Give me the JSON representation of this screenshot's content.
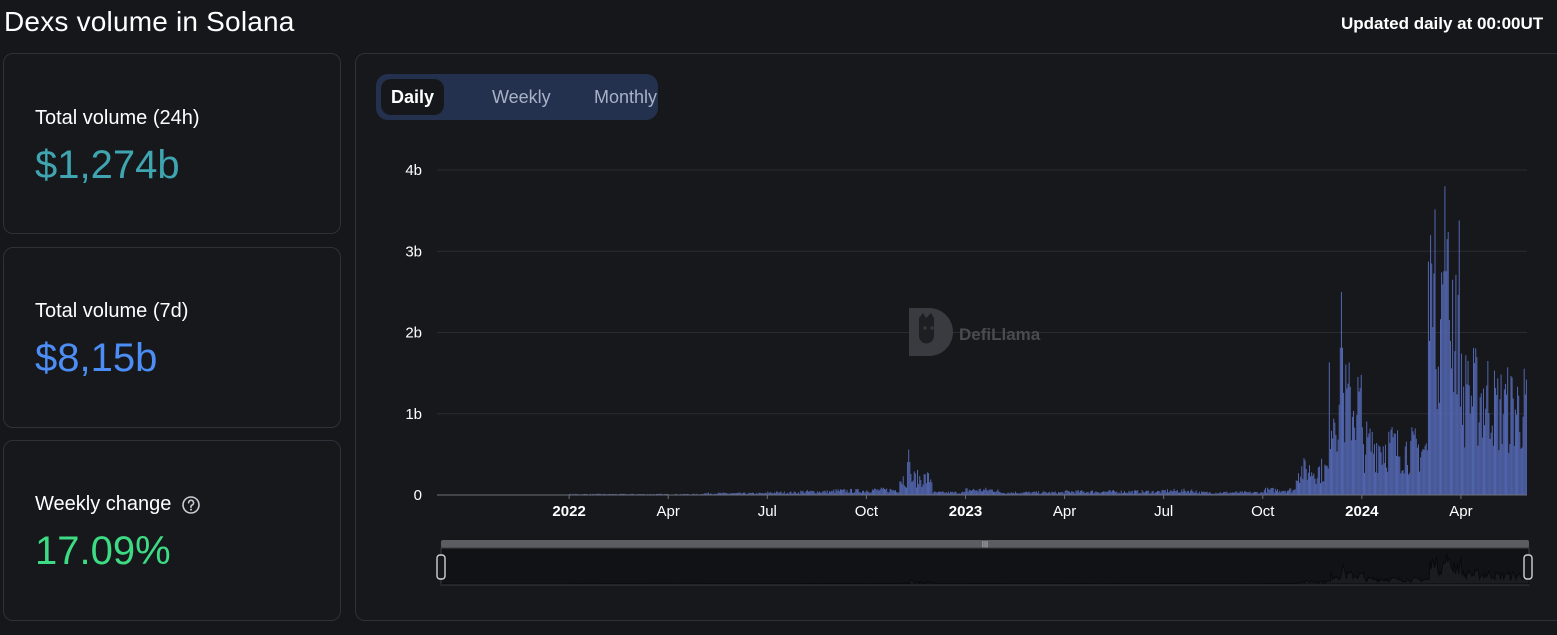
{
  "header": {
    "title": "Dexs volume in Solana",
    "updated_note": "Updated daily at 00:00UT"
  },
  "stats": [
    {
      "label": "Total volume (24h)",
      "value": "$1,274b",
      "color": "#3fa5b0"
    },
    {
      "label": "Total volume (7d)",
      "value": "$8,15b",
      "color": "#4c8ef5"
    },
    {
      "label": "Weekly change",
      "value": "17.09%",
      "color": "#3ddc84"
    }
  ],
  "tabs": [
    {
      "label": "Daily",
      "active": true
    },
    {
      "label": "Weekly",
      "active": false
    },
    {
      "label": "Monthly",
      "active": false
    }
  ],
  "watermark": "DefiLlama",
  "colors": {
    "bar": "#5468b3",
    "background": "#16171b",
    "grid": "#2a2c33",
    "axis_text": "#ffffff"
  },
  "chart_data": {
    "type": "bar",
    "title": "",
    "xlabel": "",
    "ylabel": "",
    "ylim": [
      0,
      4
    ],
    "y_unit": "b",
    "y_ticks": [
      {
        "value": 0,
        "label": "0"
      },
      {
        "value": 1,
        "label": "1b"
      },
      {
        "value": 2,
        "label": "2b"
      },
      {
        "value": 3,
        "label": "3b"
      },
      {
        "value": 4,
        "label": "4b"
      }
    ],
    "x_range": [
      "2021-09",
      "2024-05"
    ],
    "x_ticks": [
      {
        "month": "2022-01",
        "label": "2022",
        "bold": true
      },
      {
        "month": "2022-04",
        "label": "Apr",
        "bold": false
      },
      {
        "month": "2022-07",
        "label": "Jul",
        "bold": false
      },
      {
        "month": "2022-10",
        "label": "Oct",
        "bold": false
      },
      {
        "month": "2023-01",
        "label": "2023",
        "bold": true
      },
      {
        "month": "2023-04",
        "label": "Apr",
        "bold": false
      },
      {
        "month": "2023-07",
        "label": "Jul",
        "bold": false
      },
      {
        "month": "2023-10",
        "label": "Oct",
        "bold": false
      },
      {
        "month": "2024-01",
        "label": "2024",
        "bold": true
      },
      {
        "month": "2024-04",
        "label": "Apr",
        "bold": false
      }
    ],
    "grid": true,
    "legend": "none",
    "series": [
      {
        "values_date_month_billions": [
          [
            "2021-09",
            0.0
          ],
          [
            "2021-10",
            0.0
          ],
          [
            "2021-11",
            0.0
          ],
          [
            "2021-12",
            0.0
          ],
          [
            "2022-01",
            0.01
          ],
          [
            "2022-02",
            0.01
          ],
          [
            "2022-03",
            0.01
          ],
          [
            "2022-04",
            0.01
          ],
          [
            "2022-05",
            0.02
          ],
          [
            "2022-06",
            0.02
          ],
          [
            "2022-07",
            0.03
          ],
          [
            "2022-08",
            0.04
          ],
          [
            "2022-09",
            0.05
          ],
          [
            "2022-10",
            0.06
          ],
          [
            "2022-11",
            0.2
          ],
          [
            "2022-12",
            0.03
          ],
          [
            "2023-01",
            0.06
          ],
          [
            "2023-02",
            0.03
          ],
          [
            "2023-03",
            0.03
          ],
          [
            "2023-04",
            0.04
          ],
          [
            "2023-05",
            0.04
          ],
          [
            "2023-06",
            0.04
          ],
          [
            "2023-07",
            0.05
          ],
          [
            "2023-08",
            0.03
          ],
          [
            "2023-09",
            0.03
          ],
          [
            "2023-10",
            0.06
          ],
          [
            "2023-11",
            0.3
          ],
          [
            "2023-12",
            1.1
          ],
          [
            "2024-01",
            0.6
          ],
          [
            "2024-02",
            0.55
          ],
          [
            "2024-03",
            2.3
          ],
          [
            "2024-04",
            1.2
          ],
          [
            "2024-05",
            1.05
          ]
        ],
        "peaks_billions": [
          [
            "2022-11-09",
            0.56
          ],
          [
            "2023-12-12",
            2.5
          ],
          [
            "2024-03-16",
            3.8
          ],
          [
            "2024-03-04",
            2.85
          ],
          [
            "2024-04-07",
            1.65
          ],
          [
            "2024-05-10",
            1.3
          ]
        ]
      }
    ]
  }
}
